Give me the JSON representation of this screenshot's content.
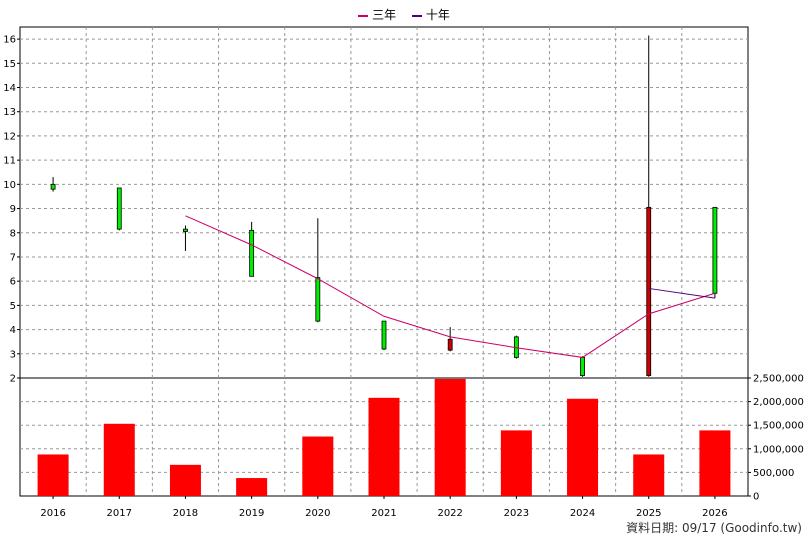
{
  "legend": [
    {
      "label": "三年",
      "color": "#cc0066"
    },
    {
      "label": "十年",
      "color": "#4b0082"
    }
  ],
  "footer": "資料日期: 09/17  (Goodinfo.tw)",
  "chart_data": {
    "type": "candlestick+line+bar",
    "x": [
      "2016",
      "2017",
      "2018",
      "2019",
      "2020",
      "2021",
      "2022",
      "2023",
      "2024",
      "2025",
      "2026"
    ],
    "price_axis": {
      "ylim": [
        2,
        16.5
      ],
      "ticks": [
        2,
        3,
        4,
        5,
        6,
        7,
        8,
        9,
        10,
        11,
        12,
        13,
        14,
        15,
        16
      ]
    },
    "volume_axis": {
      "ylim": [
        0,
        2500000
      ],
      "ticks": [
        "0",
        "500,000",
        "1,000,000",
        "1,500,000",
        "2,000,000",
        "2,500,000"
      ],
      "tick_values": [
        0,
        500000,
        1000000,
        1500000,
        2000000,
        2500000
      ]
    },
    "candles": [
      {
        "open": 9.8,
        "close": 10.0,
        "high": 10.3,
        "low": 9.7,
        "color": "green"
      },
      {
        "open": 9.85,
        "close": 8.15,
        "high": 9.85,
        "low": 8.1,
        "color": "green"
      },
      {
        "open": 8.15,
        "close": 8.05,
        "high": 8.3,
        "low": 7.25,
        "color": "green"
      },
      {
        "open": 8.1,
        "close": 6.2,
        "high": 8.45,
        "low": 6.2,
        "color": "green"
      },
      {
        "open": 6.15,
        "close": 4.35,
        "high": 8.6,
        "low": 4.3,
        "color": "green"
      },
      {
        "open": 4.35,
        "close": 3.2,
        "high": 4.35,
        "low": 3.15,
        "color": "green"
      },
      {
        "open": 3.15,
        "close": 3.6,
        "high": 4.1,
        "low": 3.1,
        "color": "red"
      },
      {
        "open": 3.7,
        "close": 2.85,
        "high": 3.75,
        "low": 2.8,
        "color": "green"
      },
      {
        "open": 2.85,
        "close": 2.1,
        "high": 2.9,
        "low": 2.05,
        "color": "green"
      },
      {
        "open": 2.1,
        "close": 9.05,
        "high": 16.15,
        "low": 2.05,
        "color": "red"
      },
      {
        "open": 9.05,
        "close": 5.5,
        "high": 9.05,
        "low": 5.3,
        "color": "green"
      }
    ],
    "series": [
      {
        "name": "三年",
        "color": "#cc0066",
        "values": [
          null,
          null,
          8.7,
          7.5,
          6.1,
          4.55,
          3.7,
          3.25,
          2.85,
          4.65,
          5.5
        ]
      },
      {
        "name": "十年",
        "color": "#4b0082",
        "values": [
          null,
          null,
          null,
          null,
          null,
          null,
          null,
          null,
          null,
          5.7,
          5.3
        ]
      }
    ],
    "volume": [
      880000,
      1530000,
      660000,
      380000,
      1260000,
      2080000,
      2480000,
      1390000,
      2060000,
      880000,
      1390000
    ],
    "grid": true,
    "legend_position": "top-center"
  }
}
